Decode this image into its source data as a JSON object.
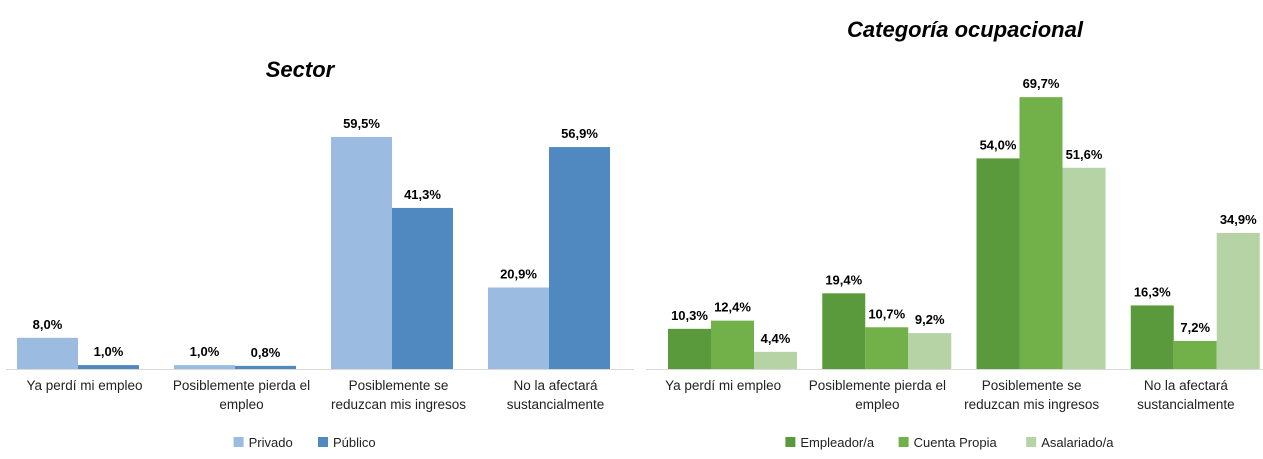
{
  "chart_data": [
    {
      "type": "bar",
      "title": "Sector",
      "categories": [
        [
          "Ya perdí mi empleo"
        ],
        [
          "Posiblemente pierda el",
          "empleo"
        ],
        [
          "Posiblemente se",
          "reduzcan mis ingresos"
        ],
        [
          "No la afectará",
          "sustancialmente"
        ]
      ],
      "series": [
        {
          "name": "Privado",
          "color": "#9BBBE0",
          "values": [
            8.0,
            1.0,
            59.5,
            20.9
          ],
          "labels": [
            "8,0%",
            "1,0%",
            "59,5%",
            "20,9%"
          ]
        },
        {
          "name": "Público",
          "color": "#4F89C0",
          "values": [
            1.0,
            0.8,
            41.3,
            56.9
          ],
          "labels": [
            "1,0%",
            "0,8%",
            "41,3%",
            "56,9%"
          ]
        }
      ],
      "legend": "bottom",
      "grid": false
    },
    {
      "type": "bar",
      "title": "Categoría ocupacional",
      "categories": [
        [
          "Ya perdí mi empleo"
        ],
        [
          "Posiblemente pierda el",
          "empleo"
        ],
        [
          "Posiblemente se",
          "reduzcan mis ingresos"
        ],
        [
          "No la afectará",
          "sustancialmente"
        ]
      ],
      "series": [
        {
          "name": "Empleador/a",
          "color": "#5A9A3C",
          "values": [
            10.3,
            19.4,
            54.0,
            16.3
          ],
          "labels": [
            "10,3%",
            "19,4%",
            "54,0%",
            "16,3%"
          ]
        },
        {
          "name": "Cuenta Propia",
          "color": "#72B04A",
          "values": [
            12.4,
            10.7,
            69.7,
            7.2
          ],
          "labels": [
            "12,4%",
            "10,7%",
            "69,7%",
            "7,2%"
          ]
        },
        {
          "name": "Asalariado/a",
          "color": "#B5D3A5",
          "values": [
            4.4,
            9.2,
            51.6,
            34.9
          ],
          "labels": [
            "4,4%",
            "9,2%",
            "51,6%",
            "34,9%"
          ]
        }
      ],
      "legend": "bottom",
      "grid": false
    }
  ]
}
